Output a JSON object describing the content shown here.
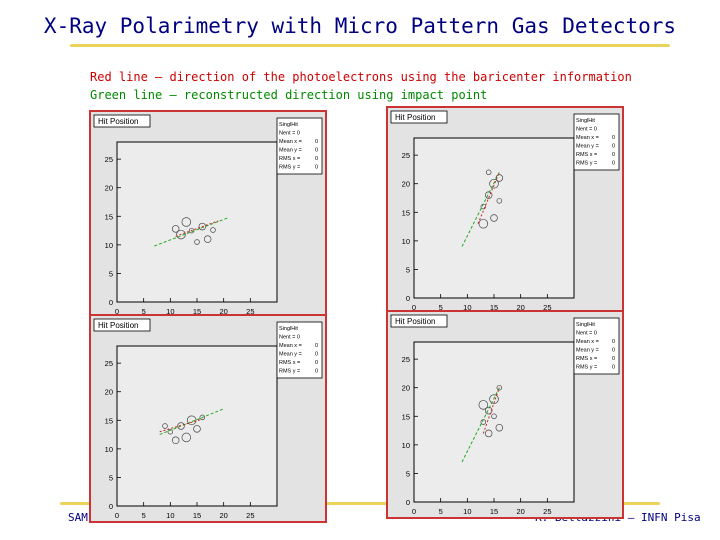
{
  "slide": {
    "title": "X-Ray Polarimetry with Micro Pattern Gas Detectors",
    "caption_red": "Red line – direction of the photoelectrons using the baricenter information",
    "caption_green": "Green line – reconstructed direction using impact point",
    "footer_left": "SAM",
    "footer_right": "R. Bellazzini – INFN Pisa",
    "colors": {
      "title": "#000080",
      "red": "#cc0000",
      "green": "#008800",
      "accent": "#e9d35a",
      "frame": "#cc3333"
    }
  },
  "panels": [
    {
      "id": "top-left",
      "hist_title": "Hit Position",
      "stats": [
        [
          "SinglHit",
          ""
        ],
        [
          "Nent = 0",
          ""
        ],
        [
          "Mean x =",
          "0"
        ],
        [
          "Mean y =",
          "0"
        ],
        [
          "RMS x =",
          "0"
        ],
        [
          "RMS y =",
          "0"
        ]
      ]
    },
    {
      "id": "top-right",
      "hist_title": "Hit Position",
      "stats": [
        [
          "SinglHit",
          ""
        ],
        [
          "Nent = 0",
          ""
        ],
        [
          "Mean x =",
          "0"
        ],
        [
          "Mean y =",
          "0"
        ],
        [
          "RMS x =",
          "0"
        ],
        [
          "RMS y =",
          "0"
        ]
      ]
    },
    {
      "id": "bottom-left",
      "hist_title": "Hit Position",
      "stats": [
        [
          "SinglHit",
          ""
        ],
        [
          "Nent = 0",
          ""
        ],
        [
          "Mean x =",
          "0"
        ],
        [
          "Mean y =",
          "0"
        ],
        [
          "RMS x =",
          "0"
        ],
        [
          "RMS y =",
          "0"
        ]
      ]
    },
    {
      "id": "bottom-right",
      "hist_title": "Hit Position",
      "stats": [
        [
          "SinglHit",
          ""
        ],
        [
          "Nent = 0",
          ""
        ],
        [
          "Mean x =",
          "0"
        ],
        [
          "Mean y =",
          "0"
        ],
        [
          "RMS x =",
          "0"
        ],
        [
          "RMS y =",
          "0"
        ]
      ]
    }
  ],
  "axes": {
    "x_ticks": [
      "0",
      "5",
      "10",
      "15",
      "20",
      "25"
    ],
    "y_ticks": [
      "0",
      "5",
      "10",
      "15",
      "20",
      "25"
    ],
    "xlim": [
      0,
      30
    ],
    "ylim": [
      0,
      28
    ]
  }
}
